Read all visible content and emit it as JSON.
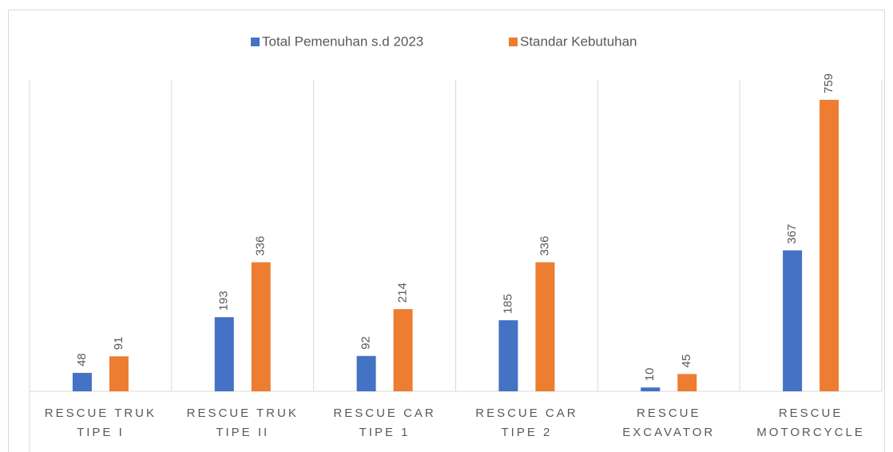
{
  "chart_data": {
    "type": "bar",
    "categories": [
      "RESCUE TRUK TIPE I",
      "RESCUE TRUK TIPE II",
      "RESCUE CAR TIPE 1",
      "RESCUE CAR TIPE 2",
      "RESCUE EXCAVATOR",
      "RESCUE MOTORCYCLE"
    ],
    "series": [
      {
        "name": "Total Pemenuhan s.d 2023",
        "color": "#4472c4",
        "values": [
          48,
          193,
          92,
          185,
          10,
          367
        ]
      },
      {
        "name": "Standar Kebutuhan",
        "color": "#ed7d31",
        "values": [
          91,
          336,
          214,
          336,
          45,
          759
        ]
      }
    ],
    "legend": "top",
    "data_labels": true
  }
}
